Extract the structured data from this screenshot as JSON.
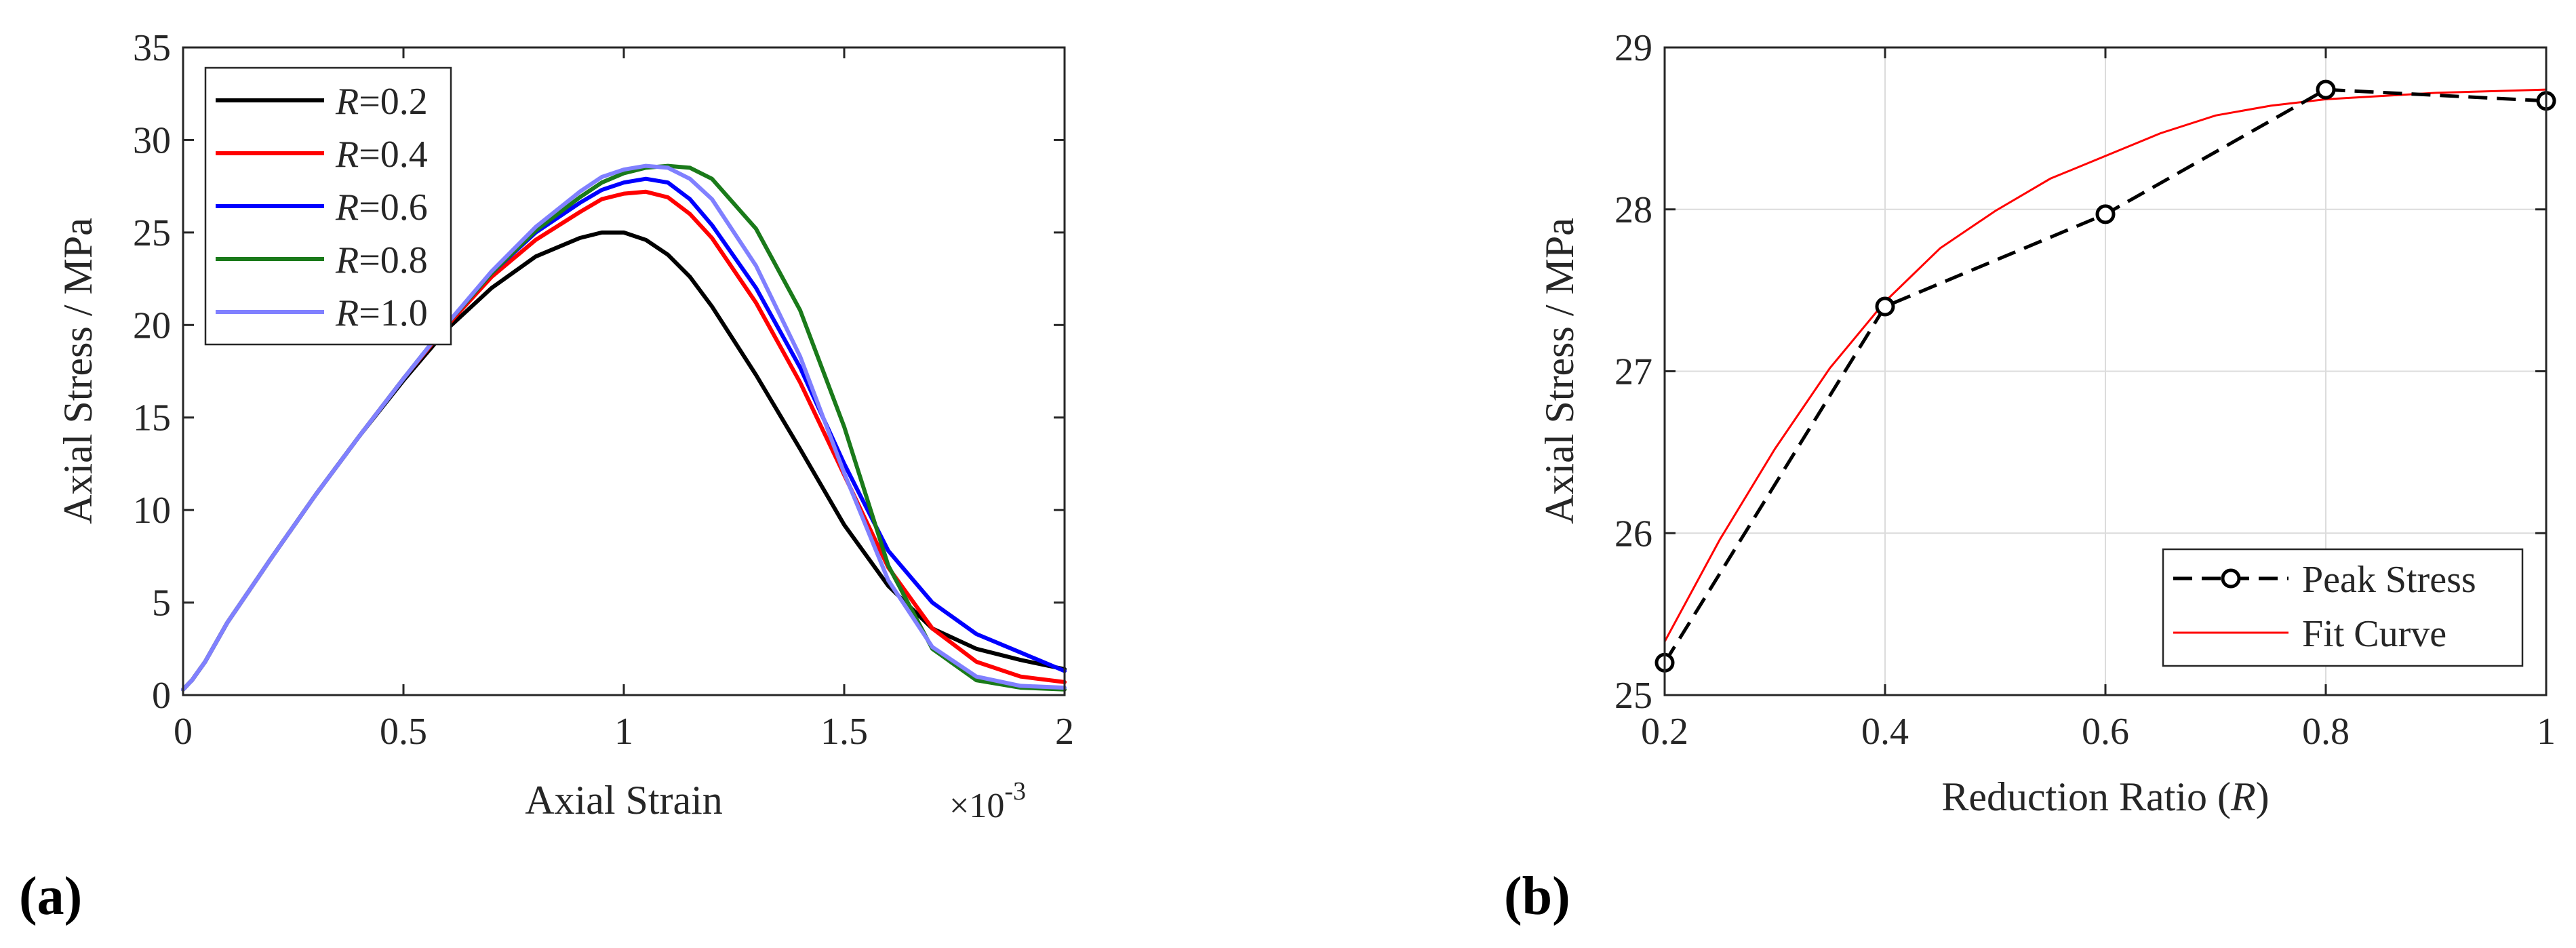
{
  "chart_data": [
    {
      "id": "a",
      "type": "line",
      "panel_label": "(a)",
      "title": "",
      "xlabel": "Axial Strain",
      "ylabel": "Axial Stress / MPa",
      "x_multiplier_base": "×10",
      "x_multiplier_exp": "-3",
      "xlim": [
        0,
        2
      ],
      "ylim": [
        0,
        35
      ],
      "xticks": [
        0,
        0.5,
        1,
        1.5,
        2
      ],
      "xtick_labels": [
        "0",
        "0.5",
        "1",
        "1.5",
        "2"
      ],
      "yticks": [
        0,
        5,
        10,
        15,
        20,
        25,
        30,
        35
      ],
      "ytick_labels": [
        "0",
        "5",
        "10",
        "15",
        "20",
        "25",
        "30",
        "35"
      ],
      "grid": false,
      "legend_position": "top-left",
      "series": [
        {
          "name": "R=0.2",
          "legend_var": "R",
          "legend_value": "=0.2",
          "color": "#000000",
          "x": [
            0,
            0.02,
            0.05,
            0.1,
            0.2,
            0.3,
            0.4,
            0.5,
            0.6,
            0.7,
            0.8,
            0.9,
            0.95,
            1.0,
            1.05,
            1.1,
            1.15,
            1.2,
            1.3,
            1.4,
            1.5,
            1.6,
            1.7,
            1.8,
            1.9,
            2.0
          ],
          "y": [
            0.3,
            0.8,
            1.8,
            3.9,
            7.4,
            10.8,
            14.0,
            17.0,
            19.8,
            22.0,
            23.7,
            24.7,
            25.0,
            25.0,
            24.6,
            23.8,
            22.6,
            21.0,
            17.3,
            13.3,
            9.2,
            5.9,
            3.6,
            2.5,
            1.9,
            1.4
          ]
        },
        {
          "name": "R=0.4",
          "legend_var": "R",
          "legend_value": "=0.4",
          "color": "#ff0000",
          "x": [
            0,
            0.02,
            0.05,
            0.1,
            0.2,
            0.3,
            0.4,
            0.5,
            0.6,
            0.7,
            0.8,
            0.9,
            0.95,
            1.0,
            1.05,
            1.1,
            1.15,
            1.2,
            1.3,
            1.4,
            1.5,
            1.6,
            1.7,
            1.8,
            1.9,
            2.0
          ],
          "y": [
            0.3,
            0.8,
            1.8,
            3.9,
            7.4,
            10.8,
            14.0,
            17.1,
            20.0,
            22.6,
            24.6,
            26.1,
            26.8,
            27.1,
            27.2,
            26.9,
            26.0,
            24.7,
            21.2,
            16.9,
            11.9,
            6.9,
            3.6,
            1.8,
            1.0,
            0.7
          ]
        },
        {
          "name": "R=0.6",
          "legend_var": "R",
          "legend_value": "=0.6",
          "color": "#0000ff",
          "x": [
            0,
            0.02,
            0.05,
            0.1,
            0.2,
            0.3,
            0.4,
            0.5,
            0.6,
            0.7,
            0.8,
            0.9,
            0.95,
            1.0,
            1.05,
            1.1,
            1.15,
            1.2,
            1.3,
            1.4,
            1.5,
            1.6,
            1.7,
            1.8,
            1.9,
            2.0
          ],
          "y": [
            0.3,
            0.8,
            1.8,
            3.9,
            7.4,
            10.8,
            14.0,
            17.1,
            20.1,
            22.8,
            25.0,
            26.6,
            27.3,
            27.7,
            27.9,
            27.7,
            26.8,
            25.4,
            22.0,
            17.7,
            12.5,
            7.8,
            5.0,
            3.3,
            2.3,
            1.3
          ]
        },
        {
          "name": "R=0.8",
          "legend_var": "R",
          "legend_value": "=0.8",
          "color": "#1a7a1a",
          "x": [
            0,
            0.02,
            0.05,
            0.1,
            0.2,
            0.3,
            0.4,
            0.5,
            0.6,
            0.7,
            0.8,
            0.9,
            0.95,
            1.0,
            1.05,
            1.1,
            1.15,
            1.2,
            1.3,
            1.4,
            1.5,
            1.6,
            1.7,
            1.8,
            1.9,
            2.0
          ],
          "y": [
            0.3,
            0.8,
            1.8,
            3.9,
            7.4,
            10.8,
            14.0,
            17.1,
            20.1,
            22.8,
            25.1,
            26.9,
            27.7,
            28.2,
            28.5,
            28.6,
            28.5,
            27.9,
            25.2,
            20.8,
            14.5,
            7.0,
            2.5,
            0.8,
            0.4,
            0.3
          ]
        },
        {
          "name": "R=1.0",
          "legend_var": "R",
          "legend_value": "=1.0",
          "color": "#8080ff",
          "x": [
            0,
            0.02,
            0.05,
            0.1,
            0.2,
            0.3,
            0.4,
            0.5,
            0.6,
            0.7,
            0.8,
            0.9,
            0.95,
            1.0,
            1.05,
            1.1,
            1.15,
            1.2,
            1.3,
            1.4,
            1.5,
            1.6,
            1.7,
            1.8,
            1.9,
            2.0
          ],
          "y": [
            0.3,
            0.8,
            1.8,
            3.9,
            7.4,
            10.8,
            14.0,
            17.1,
            20.1,
            22.9,
            25.3,
            27.2,
            28.0,
            28.4,
            28.6,
            28.5,
            27.9,
            26.8,
            23.2,
            18.3,
            12.0,
            6.2,
            2.6,
            1.0,
            0.5,
            0.4
          ]
        }
      ]
    },
    {
      "id": "b",
      "type": "line",
      "panel_label": "(b)",
      "title": "",
      "xlabel_prefix": "Reduction Ratio (",
      "xlabel_var": "R",
      "xlabel_suffix": ")",
      "ylabel": "Axial Stress / MPa",
      "xlim": [
        0.2,
        1
      ],
      "ylim": [
        25,
        29
      ],
      "xticks": [
        0.2,
        0.4,
        0.6,
        0.8,
        1
      ],
      "xtick_labels": [
        "0.2",
        "0.4",
        "0.6",
        "0.8",
        "1"
      ],
      "yticks": [
        25,
        26,
        27,
        28,
        29
      ],
      "ytick_labels": [
        "25",
        "26",
        "27",
        "28",
        "29"
      ],
      "grid": true,
      "legend_position": "bottom-right",
      "series": [
        {
          "name": "Peak Stress",
          "color": "#000000",
          "style": "dashed-with-circle-markers",
          "x": [
            0.2,
            0.4,
            0.6,
            0.8,
            1.0
          ],
          "y": [
            25.2,
            27.4,
            27.97,
            28.74,
            28.67
          ]
        },
        {
          "name": "Fit Curve",
          "color": "#ff0000",
          "style": "solid",
          "x": [
            0.2,
            0.25,
            0.3,
            0.35,
            0.4,
            0.45,
            0.5,
            0.55,
            0.6,
            0.65,
            0.7,
            0.75,
            0.8,
            0.85,
            0.9,
            0.95,
            1.0
          ],
          "y": [
            25.33,
            25.96,
            26.52,
            27.02,
            27.43,
            27.76,
            27.99,
            28.19,
            28.33,
            28.47,
            28.58,
            28.64,
            28.68,
            28.7,
            28.72,
            28.73,
            28.74
          ]
        }
      ]
    }
  ]
}
